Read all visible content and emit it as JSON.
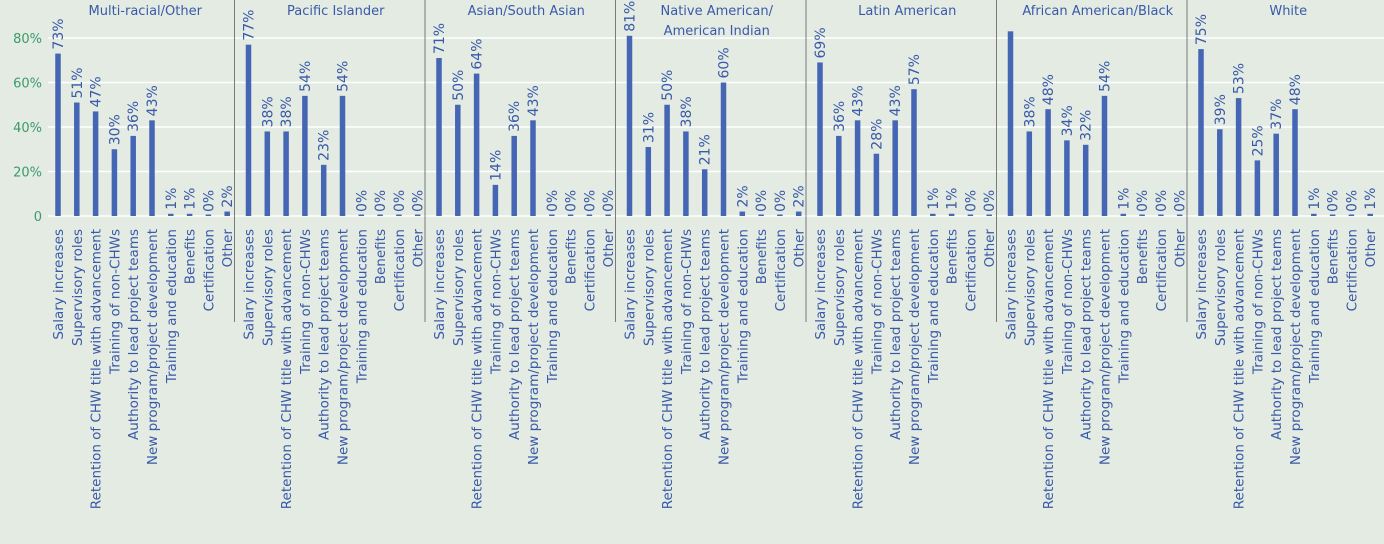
{
  "chart_data": {
    "type": "bar",
    "categories": [
      "Salary increases",
      "Supervisory roles",
      "Retention of CHW title with advancement",
      "Training of non-CHWs",
      "Authority to lead project teams",
      "New program/project development",
      "Training and education",
      "Benefits",
      "Certification",
      "Other"
    ],
    "ylim": [
      0,
      85
    ],
    "y_ticks": [
      {
        "value": 0,
        "label": "0"
      },
      {
        "value": 20,
        "label": "20%"
      },
      {
        "value": 40,
        "label": "40%"
      },
      {
        "value": 60,
        "label": "60%"
      },
      {
        "value": 80,
        "label": "80%"
      }
    ],
    "grid": true,
    "colors": {
      "bar": "#4466b4",
      "label": "#3a5aa8",
      "tick": "#3d9a6a",
      "grid": "#ffffff",
      "background": "#e3ebe3",
      "divider": "#7a7a7a"
    },
    "panels": [
      {
        "title_lines": [
          "Multi-racial/Other"
        ],
        "values": [
          73,
          51,
          47,
          30,
          36,
          43,
          1,
          1,
          0,
          2
        ],
        "labels": [
          "73%",
          "51%",
          "47%",
          "30%",
          "36%",
          "43%",
          "1%",
          "1%",
          "0%",
          "2%"
        ]
      },
      {
        "title_lines": [
          "Pacific Islander"
        ],
        "values": [
          77,
          38,
          38,
          54,
          23,
          54,
          0,
          0,
          0,
          0
        ],
        "labels": [
          "77%",
          "38%",
          "38%",
          "54%",
          "23%",
          "54%",
          "0%",
          "0%",
          "0%",
          "0%"
        ]
      },
      {
        "title_lines": [
          "Asian/South Asian"
        ],
        "values": [
          71,
          50,
          64,
          14,
          36,
          43,
          0,
          0,
          0,
          0
        ],
        "labels": [
          "71%",
          "50%",
          "64%",
          "14%",
          "36%",
          "43%",
          "0%",
          "0%",
          "0%",
          "0%"
        ]
      },
      {
        "title_lines": [
          "Native American/",
          "American Indian"
        ],
        "values": [
          81,
          31,
          50,
          38,
          21,
          60,
          2,
          0,
          0,
          2
        ],
        "labels": [
          "81%",
          "31%",
          "50%",
          "38%",
          "21%",
          "60%",
          "2%",
          "0%",
          "0%",
          "2%"
        ]
      },
      {
        "title_lines": [
          "Latin American"
        ],
        "values": [
          69,
          36,
          43,
          28,
          43,
          57,
          1,
          1,
          0,
          0
        ],
        "labels": [
          "69%",
          "36%",
          "43%",
          "28%",
          "43%",
          "57%",
          "1%",
          "1%",
          "0%",
          "0%"
        ]
      },
      {
        "title_lines": [
          "African American/Black"
        ],
        "values": [
          83,
          38,
          48,
          34,
          32,
          54,
          1,
          0,
          0,
          0
        ],
        "labels": [
          "",
          "38%",
          "48%",
          "34%",
          "32%",
          "54%",
          "1%",
          "0%",
          "0%",
          "0%"
        ]
      },
      {
        "title_lines": [
          "White"
        ],
        "values": [
          75,
          39,
          53,
          25,
          37,
          48,
          1,
          0,
          0,
          1
        ],
        "labels": [
          "75%",
          "39%",
          "53%",
          "25%",
          "37%",
          "48%",
          "1%",
          "0%",
          "0%",
          "1%"
        ]
      }
    ]
  }
}
